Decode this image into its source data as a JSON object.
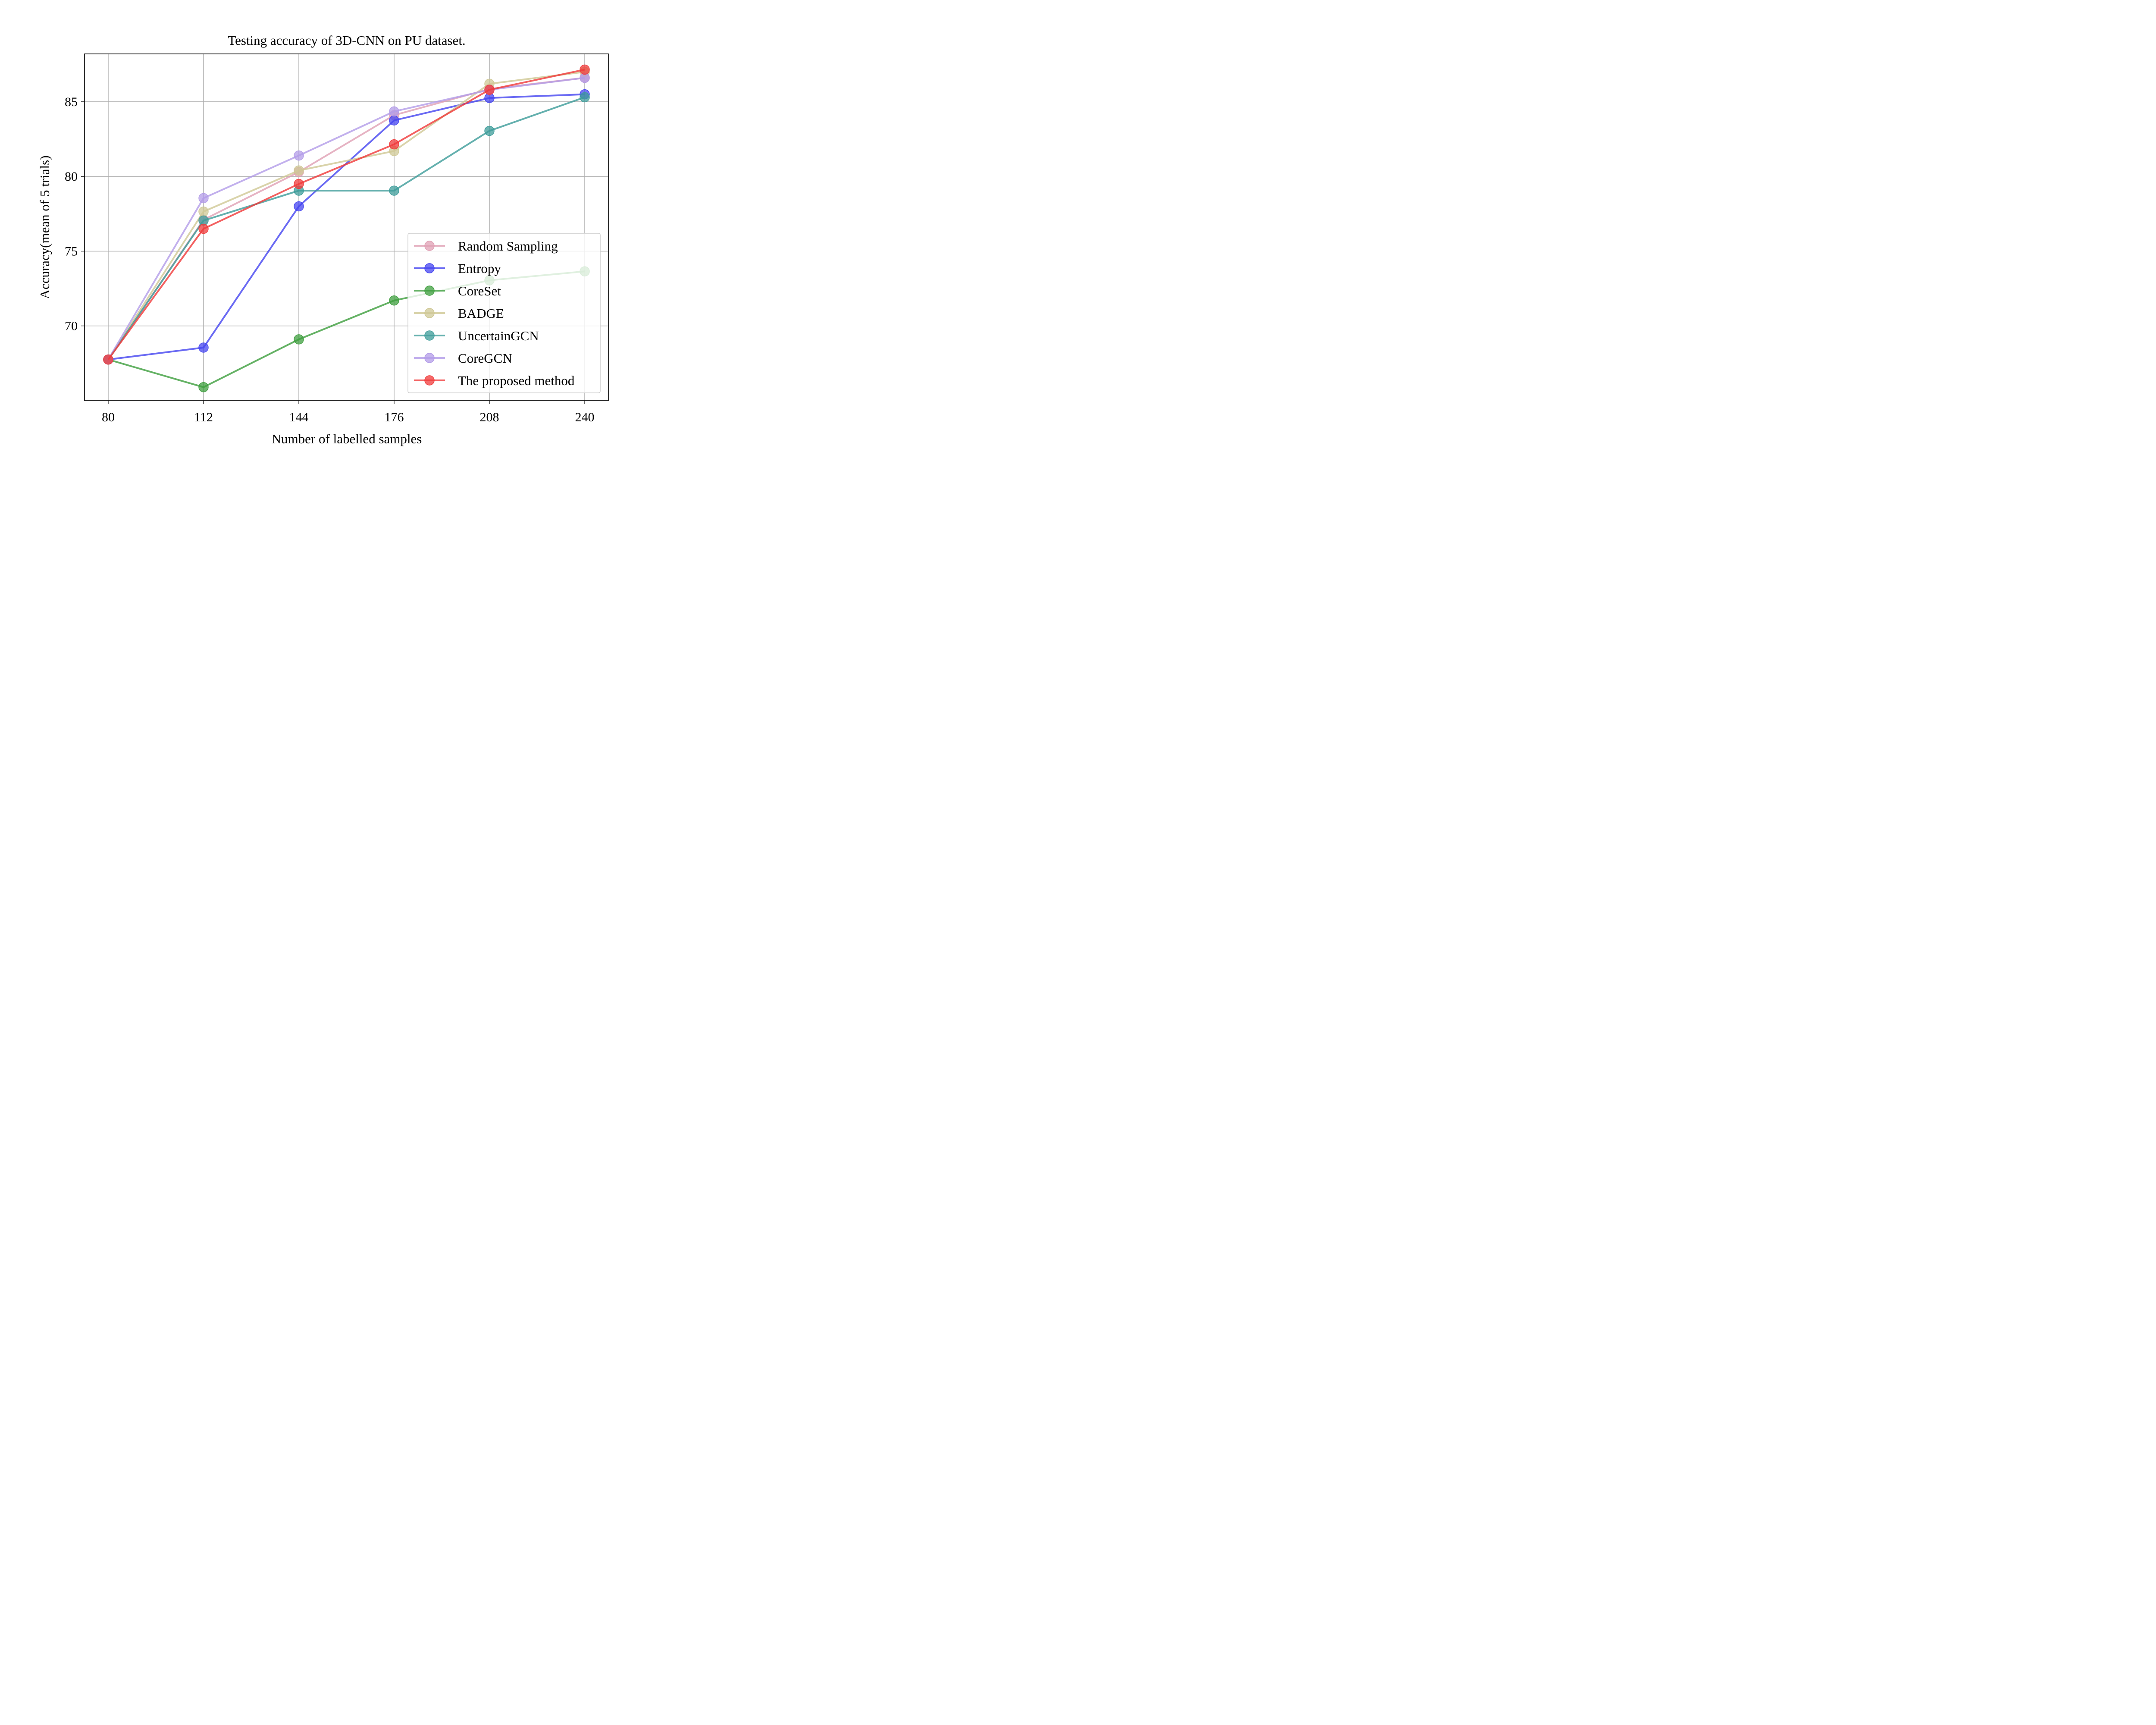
{
  "chart_data": {
    "type": "line",
    "title": "Testing accuracy of 3D-CNN on PU dataset.",
    "xlabel": "Number of labelled samples",
    "ylabel": "Accuracy(mean of 5 trials)",
    "x": [
      80,
      112,
      144,
      176,
      208,
      240
    ],
    "xticks": [
      "80",
      "112",
      "144",
      "176",
      "208",
      "240"
    ],
    "yticks": [
      70,
      75,
      80,
      85
    ],
    "ylim": [
      65.0,
      88.2
    ],
    "grid": true,
    "legend_position": "lower-right",
    "series": [
      {
        "name": "Random Sampling",
        "color": "#e0a0b4",
        "values": [
          67.75,
          77.1,
          80.3,
          84.1,
          85.85,
          86.6
        ]
      },
      {
        "name": "Entropy",
        "color": "#4545f0",
        "values": [
          67.75,
          68.55,
          78.0,
          83.75,
          85.25,
          85.5
        ]
      },
      {
        "name": "CoreSet",
        "color": "#3f9f3f",
        "values": [
          67.75,
          65.9,
          69.1,
          71.7,
          73.05,
          73.65
        ]
      },
      {
        "name": "BADGE",
        "color": "#cfc895",
        "values": [
          67.75,
          77.65,
          80.4,
          81.7,
          86.2,
          87.0
        ]
      },
      {
        "name": "UncertainGCN",
        "color": "#3d9c9a",
        "values": [
          67.75,
          77.05,
          79.05,
          79.05,
          83.05,
          85.3
        ]
      },
      {
        "name": "CoreGCN",
        "color": "#b39ce8",
        "values": [
          67.75,
          78.55,
          81.4,
          84.35,
          85.8,
          86.6
        ]
      },
      {
        "name": "The proposed method",
        "color": "#f03a3a",
        "values": [
          67.75,
          76.5,
          79.5,
          82.15,
          85.8,
          87.15
        ]
      }
    ]
  }
}
